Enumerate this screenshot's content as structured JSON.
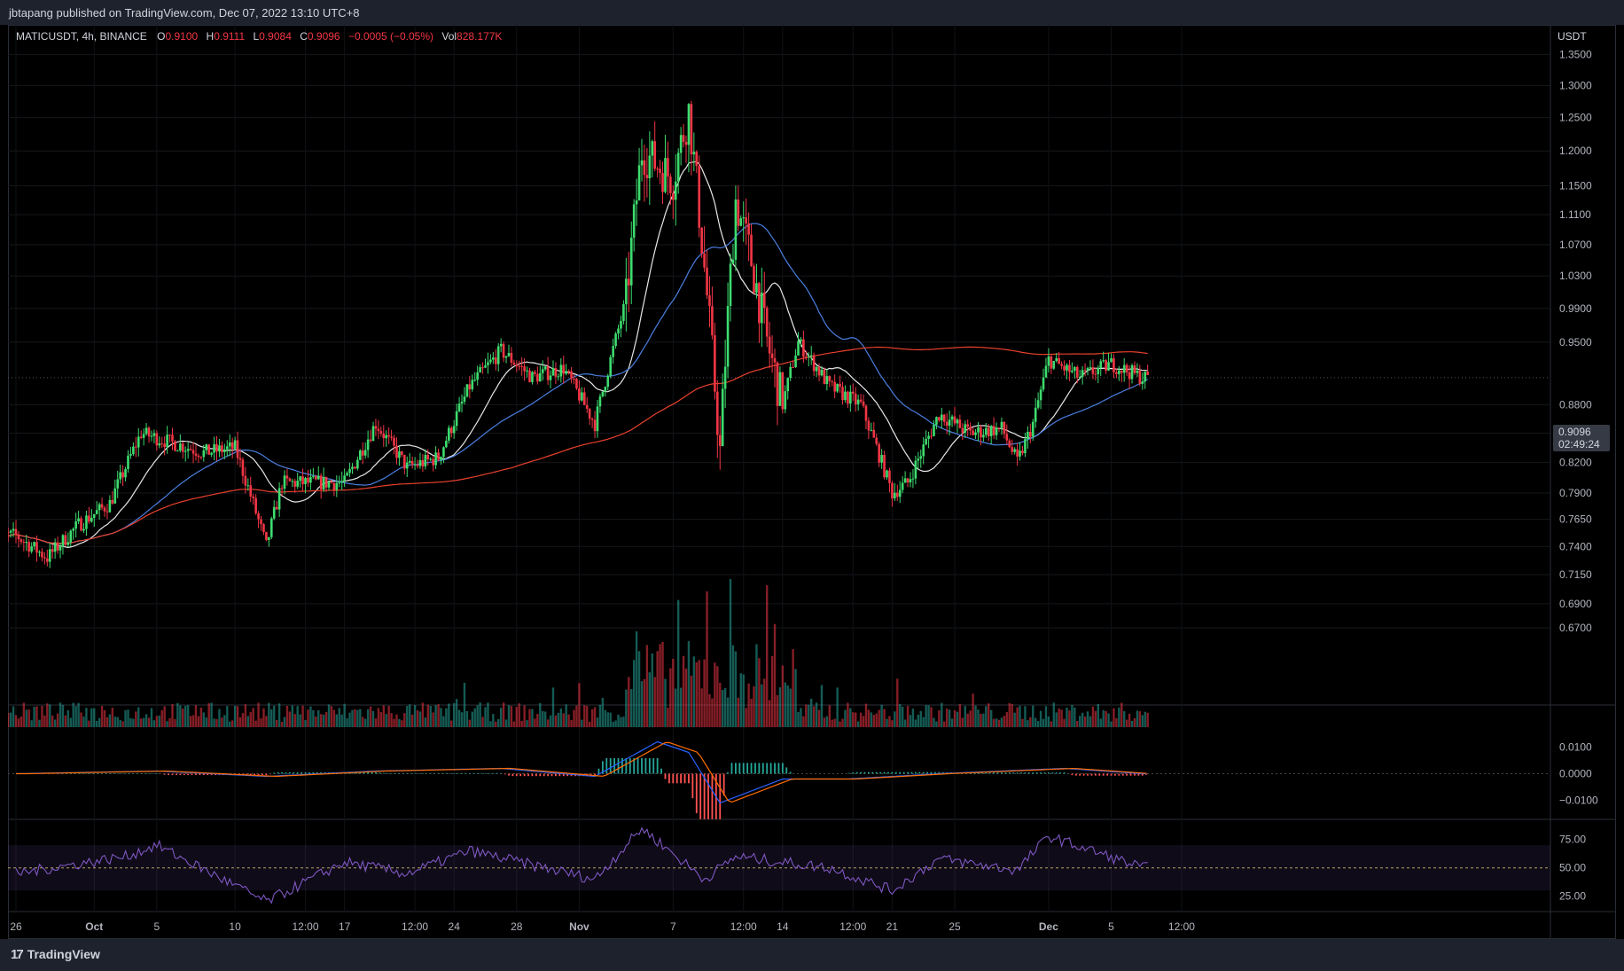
{
  "header": {
    "publisher": "jbtapang published on TradingView.com, Dec 07, 2022 13:10 UTC+8"
  },
  "legend": {
    "symbol": "MATICUSDT, 4h, BINANCE",
    "open_label": "O",
    "open": "0.9100",
    "high_label": "H",
    "high": "0.9111",
    "low_label": "L",
    "low": "0.9084",
    "close_label": "C",
    "close": "0.9096",
    "change": "−0.0005 (−0.05%)",
    "vol_label": "Vol",
    "vol": "828.177K"
  },
  "price_axis": {
    "unit": "USDT",
    "current_price": "0.9096",
    "countdown": "02:49:24",
    "ticks": [
      "1.3500",
      "1.3000",
      "1.2500",
      "1.2000",
      "1.1500",
      "1.1100",
      "1.0700",
      "1.0300",
      "0.9900",
      "0.9500",
      "0.8800",
      "0.8500",
      "0.8200",
      "0.7900",
      "0.7650",
      "0.7400",
      "0.7150",
      "0.6900",
      "0.6700"
    ]
  },
  "macd_axis": {
    "ticks": [
      "0.0100",
      "0.0000",
      "−0.0100"
    ]
  },
  "rsi_axis": {
    "ticks": [
      "75.00",
      "50.00",
      "25.00"
    ]
  },
  "time_axis": {
    "ticks": [
      "26",
      "Oct",
      "5",
      "10",
      "12:00",
      "17",
      "12:00",
      "24",
      "28",
      "Nov",
      "7",
      "12:00",
      "14",
      "12:00",
      "21",
      "25",
      "Dec",
      "5",
      "12:00"
    ]
  },
  "footer": {
    "brand": "TradingView",
    "logo_glyph": "17"
  },
  "colors": {
    "up": "#26a69a",
    "up_candle": "#3ddc6e",
    "down": "#f23645",
    "ma_fast": "#e8e8e8",
    "ma_mid": "#4a7fe0",
    "ma_slow": "#e8412c",
    "macd": "#2962ff",
    "signal": "#ff6d00",
    "rsi": "#7e57c2"
  },
  "chart_data": {
    "type": "candlestick",
    "symbol": "MATICUSDT",
    "interval": "4h",
    "y_scale": "log",
    "ylim": [
      0.67,
      1.37
    ],
    "price_path": [
      {
        "x": "Sep 26",
        "y": 0.75
      },
      {
        "x": "Sep 28",
        "y": 0.73
      },
      {
        "x": "Sep 30",
        "y": 0.76
      },
      {
        "x": "Oct 2",
        "y": 0.78
      },
      {
        "x": "Oct 4",
        "y": 0.85
      },
      {
        "x": "Oct 6",
        "y": 0.84
      },
      {
        "x": "Oct 8",
        "y": 0.83
      },
      {
        "x": "Oct 10",
        "y": 0.835
      },
      {
        "x": "Oct 12",
        "y": 0.74
      },
      {
        "x": "Oct 13",
        "y": 0.8
      },
      {
        "x": "Oct 17",
        "y": 0.8
      },
      {
        "x": "Oct 19",
        "y": 0.86
      },
      {
        "x": "Oct 21",
        "y": 0.815
      },
      {
        "x": "Oct 23",
        "y": 0.825
      },
      {
        "x": "Oct 25",
        "y": 0.9
      },
      {
        "x": "Oct 27",
        "y": 0.94
      },
      {
        "x": "Oct 29",
        "y": 0.91
      },
      {
        "x": "Oct 31",
        "y": 0.92
      },
      {
        "x": "Nov 2",
        "y": 0.86
      },
      {
        "x": "Nov 4",
        "y": 1.0
      },
      {
        "x": "Nov 5",
        "y": 1.2
      },
      {
        "x": "Nov 7",
        "y": 1.16
      },
      {
        "x": "Nov 8",
        "y": 1.26
      },
      {
        "x": "Nov 9",
        "y": 1.04
      },
      {
        "x": "Nov 10",
        "y": 0.83
      },
      {
        "x": "Nov 11",
        "y": 1.13
      },
      {
        "x": "Nov 12",
        "y": 1.05
      },
      {
        "x": "Nov 13",
        "y": 0.95
      },
      {
        "x": "Nov 14",
        "y": 0.88
      },
      {
        "x": "Nov 15",
        "y": 0.95
      },
      {
        "x": "Nov 17",
        "y": 0.9
      },
      {
        "x": "Nov 19",
        "y": 0.88
      },
      {
        "x": "Nov 21",
        "y": 0.79
      },
      {
        "x": "Nov 22",
        "y": 0.8
      },
      {
        "x": "Nov 24",
        "y": 0.87
      },
      {
        "x": "Nov 26",
        "y": 0.85
      },
      {
        "x": "Nov 28",
        "y": 0.855
      },
      {
        "x": "Nov 29",
        "y": 0.82
      },
      {
        "x": "Nov 30",
        "y": 0.86
      },
      {
        "x": "Dec 1",
        "y": 0.93
      },
      {
        "x": "Dec 3",
        "y": 0.91
      },
      {
        "x": "Dec 5",
        "y": 0.925
      },
      {
        "x": "Dec 7",
        "y": 0.9096
      }
    ],
    "macd": {
      "ylim": [
        -0.0135,
        0.0135
      ],
      "points": [
        {
          "x": "Sep 26",
          "y": 0.0
        },
        {
          "x": "Oct 5",
          "y": 0.001
        },
        {
          "x": "Oct 12",
          "y": -0.001
        },
        {
          "x": "Oct 19",
          "y": 0.001
        },
        {
          "x": "Oct 27",
          "y": 0.002
        },
        {
          "x": "Nov 2",
          "y": -0.001
        },
        {
          "x": "Nov 6",
          "y": 0.012
        },
        {
          "x": "Nov 8",
          "y": 0.008
        },
        {
          "x": "Nov 10",
          "y": -0.011
        },
        {
          "x": "Nov 14",
          "y": -0.002
        },
        {
          "x": "Nov 18",
          "y": -0.002
        },
        {
          "x": "Nov 24",
          "y": 0.0
        },
        {
          "x": "Dec 2",
          "y": 0.002
        },
        {
          "x": "Dec 7",
          "y": 0.0
        }
      ]
    },
    "rsi": {
      "ylim": [
        13,
        92
      ],
      "band": [
        30,
        70
      ],
      "mid": 50,
      "points": [
        {
          "x": "Sep 26",
          "y": 45
        },
        {
          "x": "Oct 3",
          "y": 60
        },
        {
          "x": "Oct 5",
          "y": 70
        },
        {
          "x": "Oct 12",
          "y": 20
        },
        {
          "x": "Oct 17",
          "y": 55
        },
        {
          "x": "Oct 21",
          "y": 45
        },
        {
          "x": "Oct 25",
          "y": 65
        },
        {
          "x": "Nov 2",
          "y": 40
        },
        {
          "x": "Nov 5",
          "y": 85
        },
        {
          "x": "Nov 9",
          "y": 40
        },
        {
          "x": "Nov 11",
          "y": 60
        },
        {
          "x": "Nov 17",
          "y": 50
        },
        {
          "x": "Nov 21",
          "y": 30
        },
        {
          "x": "Nov 24",
          "y": 58
        },
        {
          "x": "Nov 29",
          "y": 48
        },
        {
          "x": "Dec 1",
          "y": 78
        },
        {
          "x": "Dec 7",
          "y": 50
        }
      ]
    }
  }
}
